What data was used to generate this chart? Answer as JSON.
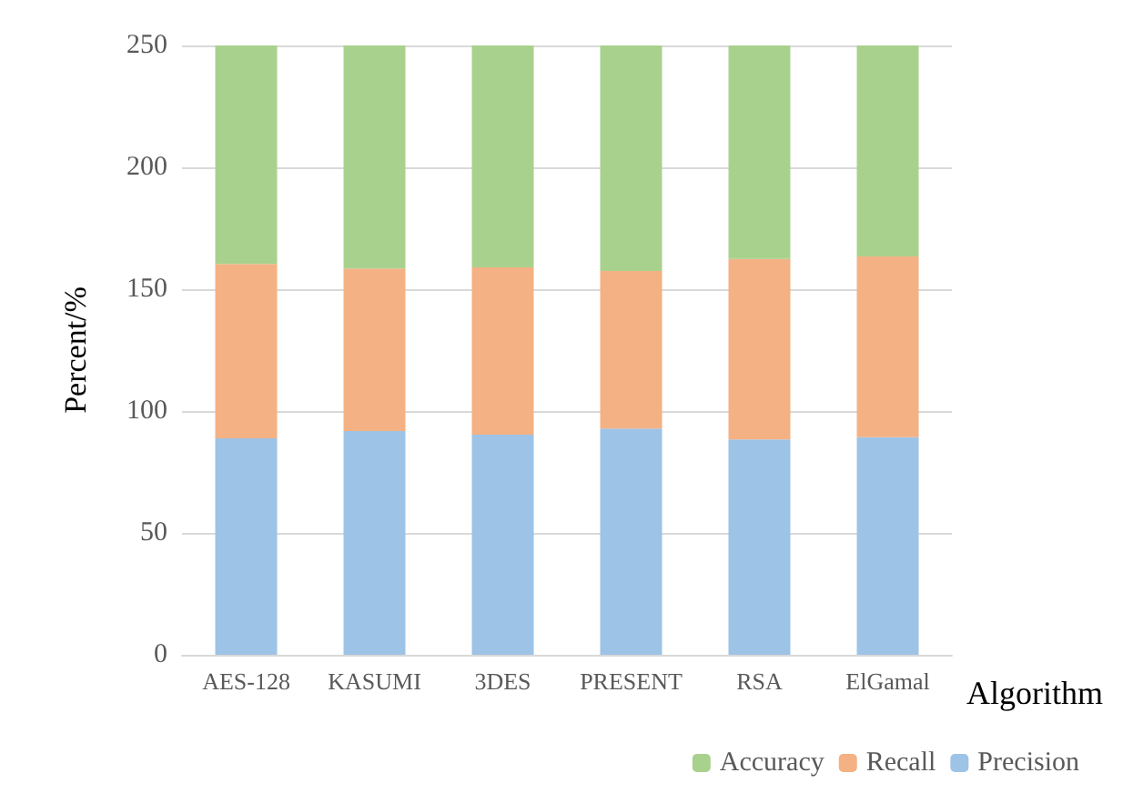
{
  "chart_data": {
    "type": "bar",
    "stacked": true,
    "xlabel": "Algorithm",
    "ylabel": "Percent/%",
    "categories": [
      "AES-128",
      "KASUMI",
      "3DES",
      "PRESENT",
      "RSA",
      "ElGamal"
    ],
    "series": [
      {
        "name": "Precision",
        "color": "#9dc3e6",
        "values": [
          88.8,
          91.8,
          90.3,
          92.8,
          88.3,
          89.3
        ]
      },
      {
        "name": "Recall",
        "color": "#f4b183",
        "values": [
          71.6,
          66.7,
          68.7,
          64.7,
          74.1,
          74.1
        ]
      },
      {
        "name": "Accuracy",
        "color": "#a9d18e",
        "values": [
          89.6,
          91.5,
          91.0,
          92.5,
          87.6,
          86.6
        ]
      }
    ],
    "ylim": [
      0,
      250
    ],
    "yticks": [
      0,
      50,
      100,
      150,
      200,
      250
    ],
    "grid": "y",
    "legend": "bottom right"
  }
}
